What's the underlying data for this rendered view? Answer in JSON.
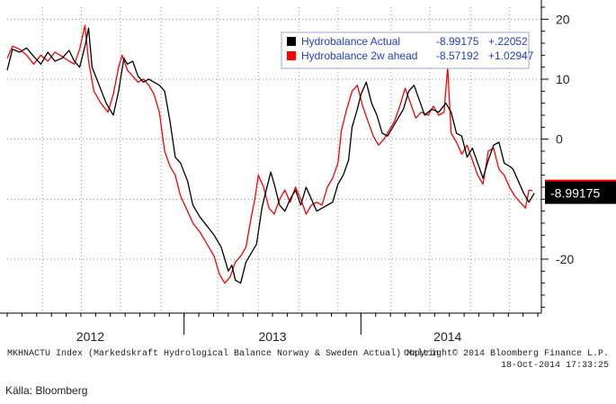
{
  "chart_data": {
    "type": "line",
    "title": "",
    "xlabel": "",
    "ylabel": "",
    "ylim": [
      -29,
      22
    ],
    "yticks": [
      20,
      10,
      0,
      -20
    ],
    "ytick_labels": [
      "20",
      "10",
      "0",
      "-20"
    ],
    "x_domain": [
      2011.93,
      2014.95
    ],
    "year_labels": [
      {
        "label": "2012",
        "x": 2012.4
      },
      {
        "label": "2013",
        "x": 2013.43
      },
      {
        "label": "2014",
        "x": 2014.42
      }
    ],
    "year_separators": [
      2012.93,
      2013.93
    ],
    "grid": true,
    "legend": "top-right",
    "series": [
      {
        "name": "Hydrobalance Actual",
        "last": "-8.99175",
        "change": "+.22052",
        "color": "#000000",
        "points": [
          [
            2011.93,
            11.5
          ],
          [
            2011.96,
            15.0
          ],
          [
            2012.0,
            14.5
          ],
          [
            2012.04,
            15.2
          ],
          [
            2012.08,
            13.8
          ],
          [
            2012.12,
            12.5
          ],
          [
            2012.16,
            14.5
          ],
          [
            2012.2,
            13.0
          ],
          [
            2012.24,
            13.5
          ],
          [
            2012.28,
            14.8
          ],
          [
            2012.31,
            13.0
          ],
          [
            2012.34,
            12.0
          ],
          [
            2012.37,
            15.5
          ],
          [
            2012.39,
            18.5
          ],
          [
            2012.41,
            12.0
          ],
          [
            2012.45,
            9.0
          ],
          [
            2012.49,
            6.0
          ],
          [
            2012.53,
            4.0
          ],
          [
            2012.56,
            8.0
          ],
          [
            2012.59,
            13.5
          ],
          [
            2012.61,
            12.5
          ],
          [
            2012.64,
            13.0
          ],
          [
            2012.67,
            10.5
          ],
          [
            2012.7,
            9.5
          ],
          [
            2012.73,
            10.0
          ],
          [
            2012.76,
            9.5
          ],
          [
            2012.79,
            9.0
          ],
          [
            2012.82,
            8.0
          ],
          [
            2012.85,
            3.0
          ],
          [
            2012.88,
            -3.0
          ],
          [
            2012.91,
            -4.0
          ],
          [
            2012.95,
            -7.0
          ],
          [
            2012.98,
            -11.0
          ],
          [
            2013.02,
            -13.0
          ],
          [
            2013.06,
            -14.5
          ],
          [
            2013.1,
            -16.0
          ],
          [
            2013.14,
            -18.0
          ],
          [
            2013.18,
            -22.0
          ],
          [
            2013.2,
            -21.0
          ],
          [
            2013.22,
            -23.5
          ],
          [
            2013.25,
            -24.0
          ],
          [
            2013.28,
            -20.5
          ],
          [
            2013.31,
            -19.0
          ],
          [
            2013.34,
            -17.5
          ],
          [
            2013.37,
            -11.5
          ],
          [
            2013.39,
            -9.0
          ],
          [
            2013.42,
            -5.5
          ],
          [
            2013.44,
            -7.5
          ],
          [
            2013.47,
            -11.0
          ],
          [
            2013.5,
            -12.0
          ],
          [
            2013.53,
            -10.0
          ],
          [
            2013.56,
            -8.5
          ],
          [
            2013.59,
            -11.0
          ],
          [
            2013.62,
            -8.0
          ],
          [
            2013.65,
            -10.0
          ],
          [
            2013.68,
            -12.0
          ],
          [
            2013.71,
            -11.5
          ],
          [
            2013.74,
            -11.0
          ],
          [
            2013.77,
            -10.5
          ],
          [
            2013.8,
            -7.5
          ],
          [
            2013.83,
            -6.0
          ],
          [
            2013.86,
            -3.5
          ],
          [
            2013.88,
            2.0
          ],
          [
            2013.91,
            5.0
          ],
          [
            2013.93,
            7.5
          ],
          [
            2013.96,
            9.5
          ],
          [
            2013.99,
            6.0
          ],
          [
            2014.02,
            4.0
          ],
          [
            2014.05,
            1.0
          ],
          [
            2014.08,
            0.5
          ],
          [
            2014.11,
            2.0
          ],
          [
            2014.14,
            3.5
          ],
          [
            2014.17,
            5.0
          ],
          [
            2014.2,
            8.0
          ],
          [
            2014.23,
            9.0
          ],
          [
            2014.26,
            6.5
          ],
          [
            2014.29,
            4.0
          ],
          [
            2014.33,
            5.0
          ],
          [
            2014.37,
            4.5
          ],
          [
            2014.41,
            6.0
          ],
          [
            2014.44,
            4.5
          ],
          [
            2014.47,
            1.0
          ],
          [
            2014.5,
            0.5
          ],
          [
            2014.53,
            -3.0
          ],
          [
            2014.56,
            -1.5
          ],
          [
            2014.59,
            -4.0
          ],
          [
            2014.62,
            -6.5
          ],
          [
            2014.65,
            -3.5
          ],
          [
            2014.68,
            -1.0
          ],
          [
            2014.71,
            -0.5
          ],
          [
            2014.74,
            -4.0
          ],
          [
            2014.77,
            -4.5
          ],
          [
            2014.79,
            -5.0
          ],
          [
            2014.82,
            -7.0
          ],
          [
            2014.85,
            -9.0
          ],
          [
            2014.88,
            -10.5
          ],
          [
            2014.91,
            -9.0
          ]
        ]
      },
      {
        "name": "Hydrobalance 2w ahead",
        "last": "-8.57192",
        "change": "+1.02947",
        "color": "#ff0000",
        "points": [
          [
            2011.93,
            13.5
          ],
          [
            2011.96,
            15.5
          ],
          [
            2012.0,
            15.0
          ],
          [
            2012.04,
            14.0
          ],
          [
            2012.08,
            12.5
          ],
          [
            2012.12,
            14.0
          ],
          [
            2012.16,
            13.0
          ],
          [
            2012.2,
            14.5
          ],
          [
            2012.24,
            13.8
          ],
          [
            2012.28,
            13.0
          ],
          [
            2012.31,
            12.5
          ],
          [
            2012.34,
            15.0
          ],
          [
            2012.37,
            19.0
          ],
          [
            2012.39,
            13.0
          ],
          [
            2012.42,
            8.0
          ],
          [
            2012.46,
            6.0
          ],
          [
            2012.5,
            4.5
          ],
          [
            2012.53,
            7.5
          ],
          [
            2012.56,
            12.0
          ],
          [
            2012.58,
            14.0
          ],
          [
            2012.61,
            11.5
          ],
          [
            2012.64,
            10.5
          ],
          [
            2012.67,
            9.5
          ],
          [
            2012.7,
            10.0
          ],
          [
            2012.73,
            9.0
          ],
          [
            2012.76,
            7.5
          ],
          [
            2012.79,
            4.5
          ],
          [
            2012.82,
            -2.0
          ],
          [
            2012.85,
            -4.5
          ],
          [
            2012.88,
            -6.0
          ],
          [
            2012.91,
            -9.5
          ],
          [
            2012.95,
            -12.0
          ],
          [
            2012.98,
            -14.0
          ],
          [
            2013.02,
            -15.5
          ],
          [
            2013.06,
            -17.5
          ],
          [
            2013.1,
            -19.5
          ],
          [
            2013.13,
            -22.5
          ],
          [
            2013.16,
            -24.0
          ],
          [
            2013.19,
            -23.0
          ],
          [
            2013.22,
            -20.5
          ],
          [
            2013.25,
            -19.5
          ],
          [
            2013.28,
            -18.0
          ],
          [
            2013.31,
            -13.0
          ],
          [
            2013.33,
            -10.0
          ],
          [
            2013.35,
            -6.0
          ],
          [
            2013.38,
            -8.0
          ],
          [
            2013.41,
            -11.5
          ],
          [
            2013.44,
            -12.5
          ],
          [
            2013.47,
            -10.0
          ],
          [
            2013.5,
            -8.5
          ],
          [
            2013.53,
            -10.5
          ],
          [
            2013.56,
            -8.0
          ],
          [
            2013.59,
            -10.0
          ],
          [
            2013.62,
            -12.5
          ],
          [
            2013.65,
            -11.0
          ],
          [
            2013.68,
            -10.5
          ],
          [
            2013.71,
            -11.0
          ],
          [
            2013.74,
            -8.0
          ],
          [
            2013.77,
            -6.5
          ],
          [
            2013.8,
            -4.0
          ],
          [
            2013.82,
            1.5
          ],
          [
            2013.85,
            5.0
          ],
          [
            2013.88,
            8.0
          ],
          [
            2013.91,
            9.0
          ],
          [
            2013.94,
            5.5
          ],
          [
            2013.97,
            3.0
          ],
          [
            2014.0,
            0.5
          ],
          [
            2014.03,
            -1.0
          ],
          [
            2014.06,
            0.0
          ],
          [
            2014.09,
            1.5
          ],
          [
            2014.12,
            3.0
          ],
          [
            2014.15,
            5.5
          ],
          [
            2014.18,
            8.5
          ],
          [
            2014.21,
            6.0
          ],
          [
            2014.24,
            3.5
          ],
          [
            2014.27,
            4.5
          ],
          [
            2014.31,
            4.0
          ],
          [
            2014.34,
            5.5
          ],
          [
            2014.37,
            4.0
          ],
          [
            2014.4,
            4.5
          ],
          [
            2014.42,
            12.0
          ],
          [
            2014.44,
            1.0
          ],
          [
            2014.47,
            -0.5
          ],
          [
            2014.5,
            -2.5
          ],
          [
            2014.53,
            -1.0
          ],
          [
            2014.56,
            -3.5
          ],
          [
            2014.59,
            -6.0
          ],
          [
            2014.62,
            -7.5
          ],
          [
            2014.65,
            -2.0
          ],
          [
            2014.68,
            -1.5
          ],
          [
            2014.71,
            -5.0
          ],
          [
            2014.74,
            -6.0
          ],
          [
            2014.77,
            -8.0
          ],
          [
            2014.8,
            -9.5
          ],
          [
            2014.83,
            -10.5
          ],
          [
            2014.86,
            -11.5
          ],
          [
            2014.88,
            -8.5
          ],
          [
            2014.9,
            -8.6
          ]
        ]
      }
    ],
    "last_value_label": "-8.99175"
  },
  "footer": {
    "index_desc": "MKHNACTU Index (Markedskraft Hydrological Balance Norway & Sweden Actual) Maltin",
    "copyright": "Copyright© 2014 Bloomberg Finance L.P.",
    "timestamp": "18-Oct-2014 17:33:25"
  },
  "source": "Källa: Bloomberg"
}
